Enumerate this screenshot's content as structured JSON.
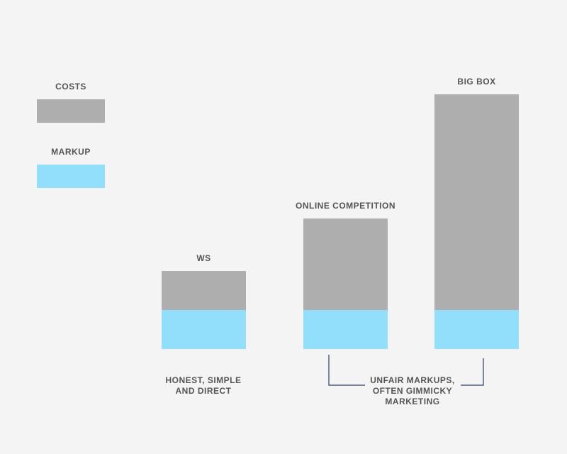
{
  "chart_data": {
    "type": "stacked-bar",
    "categories": [
      "WS",
      "ONLINE COMPETITION",
      "BIG BOX"
    ],
    "series": [
      {
        "name": "COSTS",
        "color": "#aeaeae",
        "values": [
          55,
          129,
          304
        ]
      },
      {
        "name": "MARKUP",
        "color": "#92dffc",
        "values": [
          55,
          55,
          55
        ]
      }
    ],
    "annotations": [
      "HONEST, SIMPLE AND DIRECT",
      "UNFAIR MARKUPS, OFTEN GIMMICKY MARKETING"
    ]
  }
}
